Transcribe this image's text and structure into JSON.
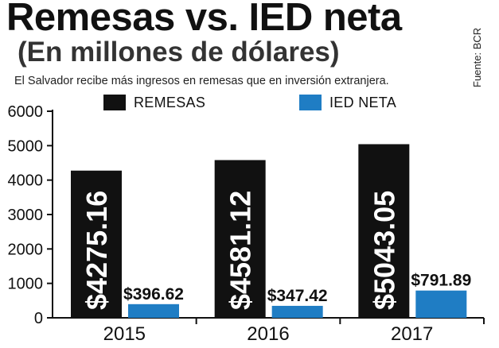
{
  "header": {
    "title": "Remesas vs. IED neta",
    "subtitle": "(En millones de dólares)",
    "description": "El Salvador recibe más ingresos en remesas que en inversión extranjera.",
    "source": "Fuente: BCR"
  },
  "colors": {
    "remesas": "#111111",
    "ied": "#1f7dc4",
    "axis": "#111111"
  },
  "chart_data": {
    "type": "bar",
    "categories": [
      "2015",
      "2016",
      "2017"
    ],
    "series": [
      {
        "name": "REMESAS",
        "values": [
          4275.16,
          4581.12,
          5043.05
        ],
        "labels": [
          "$4275.16",
          "$4581.12",
          "$5043.05"
        ]
      },
      {
        "name": "IED NETA",
        "values": [
          396.62,
          347.42,
          791.89
        ],
        "labels": [
          "$396.62",
          "$347.42",
          "$791.89"
        ]
      }
    ],
    "yticks": [
      "0",
      "1000",
      "2000",
      "3000",
      "4000",
      "5000",
      "6000"
    ],
    "ylim": [
      0,
      6000
    ],
    "legend": "top",
    "grid": false
  }
}
